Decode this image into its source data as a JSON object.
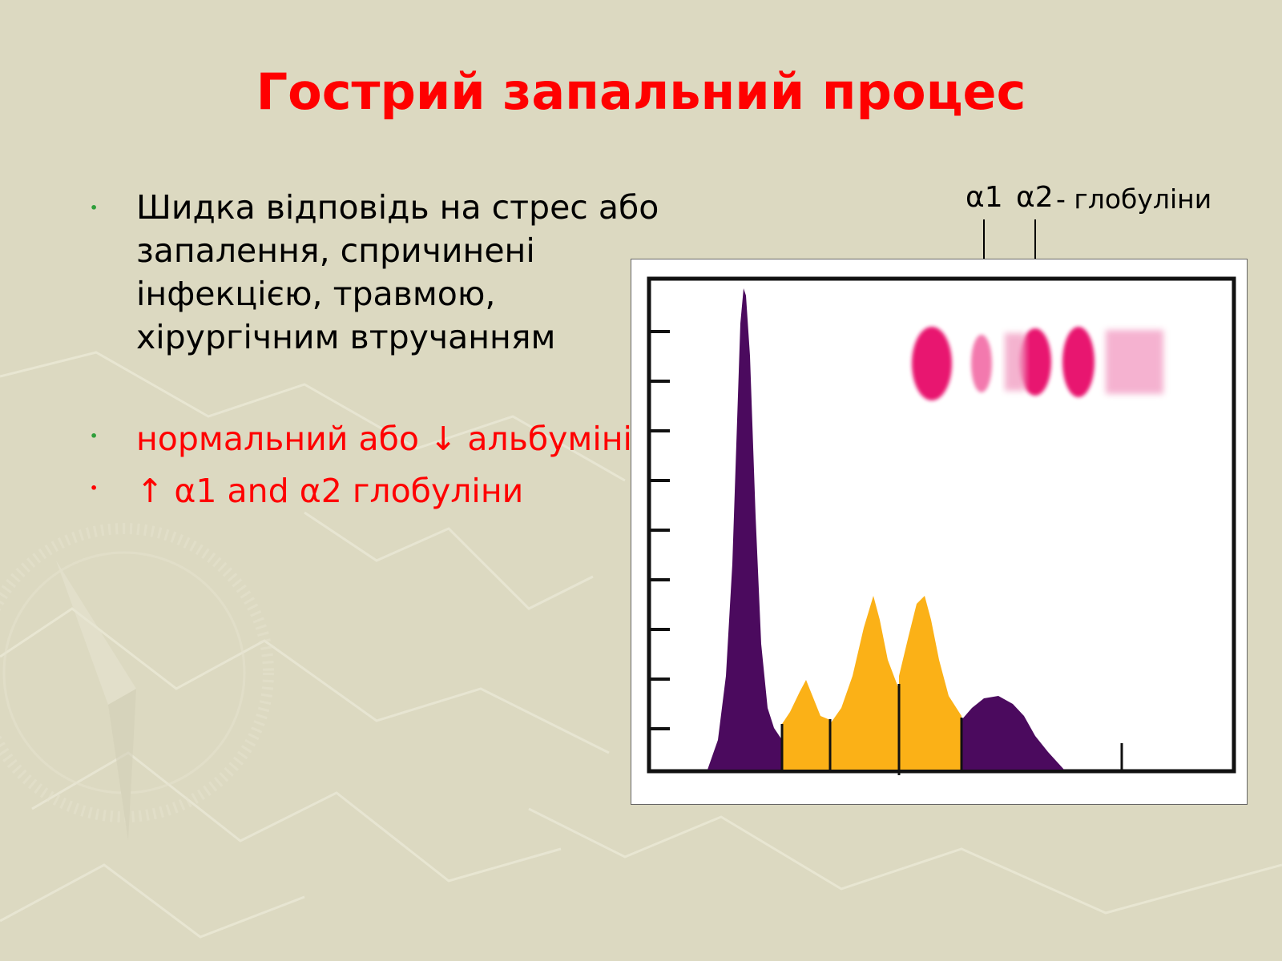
{
  "slide": {
    "title": "Гострий запальний процес",
    "colors": {
      "title": "#ff0000",
      "body": "#000000",
      "accent": "#ff0000",
      "background": "#dcd9c1"
    },
    "bullets": [
      {
        "lines": [
          "Шидка відповідь на стрес або",
          "запалення, спричинені",
          "інфекцією, травмою,",
          "хірургічним втручанням"
        ],
        "color": "black"
      },
      {
        "lines": [
          "нормальний або ↓ альбумінів"
        ],
        "color": "red"
      },
      {
        "lines": [
          "↑ α1 and α2 глобуліни"
        ],
        "color": "red"
      }
    ]
  },
  "diagram": {
    "labels": {
      "alpha1": "α1",
      "alpha2": "α2",
      "suffix": "- глобуліни"
    },
    "colors": {
      "albumin_and_gamma": "#4b0a5e",
      "globulins": "#fbb117",
      "gel_bands": "#e8146f"
    }
  }
}
